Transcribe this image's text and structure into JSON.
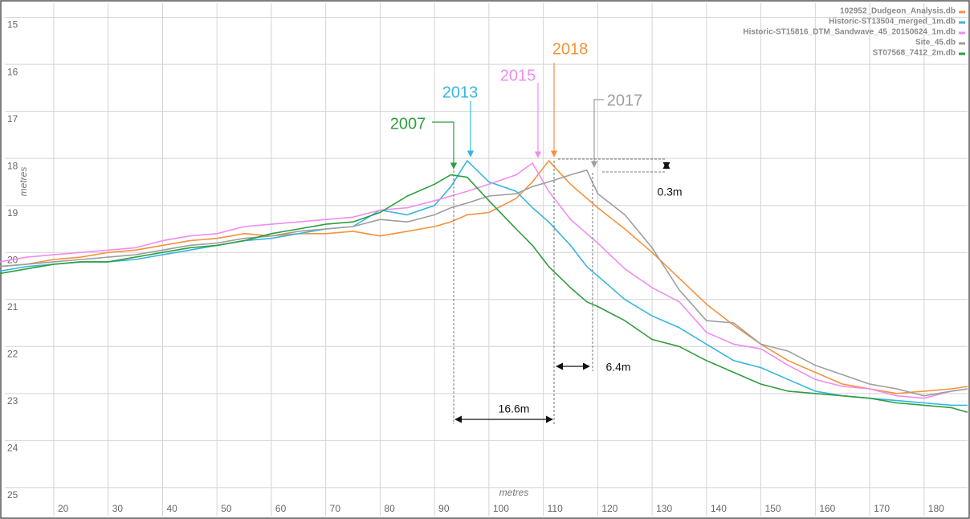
{
  "chart_data": {
    "type": "line",
    "xlabel": "metres",
    "ylabel": "metres",
    "x": [
      10,
      15,
      20,
      25,
      30,
      35,
      40,
      45,
      50,
      55,
      60,
      65,
      70,
      75,
      80,
      85,
      90,
      93,
      96,
      100,
      105,
      108,
      111,
      115,
      118,
      120,
      125,
      130,
      135,
      140,
      145,
      150,
      155,
      160,
      165,
      170,
      175,
      180,
      185,
      188
    ],
    "series": [
      {
        "name": "102952_Dudgeon_Analysis.db",
        "color": "#f5923e",
        "values": [
          20.3,
          20.25,
          20.15,
          20.1,
          20.0,
          19.95,
          19.85,
          19.75,
          19.7,
          19.6,
          19.65,
          19.6,
          19.6,
          19.55,
          19.65,
          19.55,
          19.45,
          19.35,
          19.2,
          19.15,
          18.85,
          18.5,
          18.05,
          18.55,
          18.85,
          19.05,
          19.5,
          20.0,
          20.55,
          21.1,
          21.55,
          21.95,
          22.3,
          22.55,
          22.8,
          22.9,
          23.0,
          22.95,
          22.9,
          22.85
        ]
      },
      {
        "name": "Historic-ST13504_merged_1m.db",
        "color": "#37b6e0",
        "values": [
          20.4,
          20.3,
          20.25,
          20.2,
          20.2,
          20.15,
          20.05,
          19.95,
          19.85,
          19.75,
          19.7,
          19.6,
          19.5,
          19.45,
          19.1,
          19.2,
          19.0,
          18.6,
          18.05,
          18.5,
          18.7,
          19.05,
          19.35,
          19.85,
          20.3,
          20.5,
          21.0,
          21.35,
          21.6,
          21.95,
          22.3,
          22.45,
          22.7,
          22.95,
          23.05,
          23.1,
          23.15,
          23.2,
          23.25,
          23.25
        ]
      },
      {
        "name": "Historic-ST15816_DTM_Sandwave_45_20150624_1m.db",
        "color": "#f08cf0",
        "values": [
          20.2,
          20.1,
          20.05,
          20.0,
          19.95,
          19.9,
          19.75,
          19.65,
          19.6,
          19.45,
          19.4,
          19.35,
          19.3,
          19.25,
          19.1,
          19.05,
          18.9,
          18.8,
          18.7,
          18.55,
          18.35,
          18.1,
          18.7,
          19.3,
          19.6,
          19.8,
          20.35,
          20.75,
          21.05,
          21.7,
          21.95,
          22.05,
          22.4,
          22.7,
          22.85,
          22.9,
          23.05,
          23.1,
          22.95,
          22.9
        ]
      },
      {
        "name": "Site_45.db",
        "color": "#9e9e9e",
        "values": [
          20.3,
          20.25,
          20.2,
          20.15,
          20.1,
          20.05,
          19.95,
          19.85,
          19.8,
          19.7,
          19.65,
          19.55,
          19.5,
          19.45,
          19.3,
          19.35,
          19.2,
          19.05,
          18.95,
          18.8,
          18.75,
          18.6,
          18.5,
          18.35,
          18.25,
          18.75,
          19.2,
          19.9,
          20.8,
          21.45,
          21.5,
          21.95,
          22.1,
          22.4,
          22.6,
          22.8,
          22.9,
          23.05,
          22.95,
          22.9
        ]
      },
      {
        "name": "ST07568_7412_2m.db",
        "color": "#2e9e3e",
        "values": [
          20.45,
          20.35,
          20.25,
          20.2,
          20.2,
          20.1,
          20.0,
          19.9,
          19.85,
          19.75,
          19.6,
          19.5,
          19.4,
          19.35,
          19.15,
          18.8,
          18.55,
          18.35,
          18.4,
          18.9,
          19.5,
          19.85,
          20.3,
          20.75,
          21.05,
          21.15,
          21.45,
          21.85,
          22.0,
          22.3,
          22.55,
          22.8,
          22.95,
          23.0,
          23.05,
          23.1,
          23.2,
          23.25,
          23.3,
          23.4
        ]
      }
    ],
    "xlim": [
      11,
      188
    ],
    "ylim": [
      14.7,
      25.6
    ],
    "y_inverted": true,
    "xticks": [
      20,
      30,
      40,
      50,
      60,
      70,
      80,
      90,
      100,
      110,
      120,
      130,
      140,
      150,
      160,
      170,
      180
    ],
    "yticks": [
      15,
      16,
      17,
      18,
      19,
      20,
      21,
      22,
      23,
      24,
      25
    ],
    "grid": true,
    "legend": "upper right",
    "annotations": [
      {
        "text": "2018",
        "color": "#f5923e"
      },
      {
        "text": "2015",
        "color": "#f08cf0"
      },
      {
        "text": "2013",
        "color": "#37b6e0"
      },
      {
        "text": "2007",
        "color": "#2e9e3e"
      },
      {
        "text": "2017",
        "color": "#9e9e9e"
      },
      {
        "text": "16.6m"
      },
      {
        "text": "6.4m"
      },
      {
        "text": "0.3m"
      }
    ]
  }
}
